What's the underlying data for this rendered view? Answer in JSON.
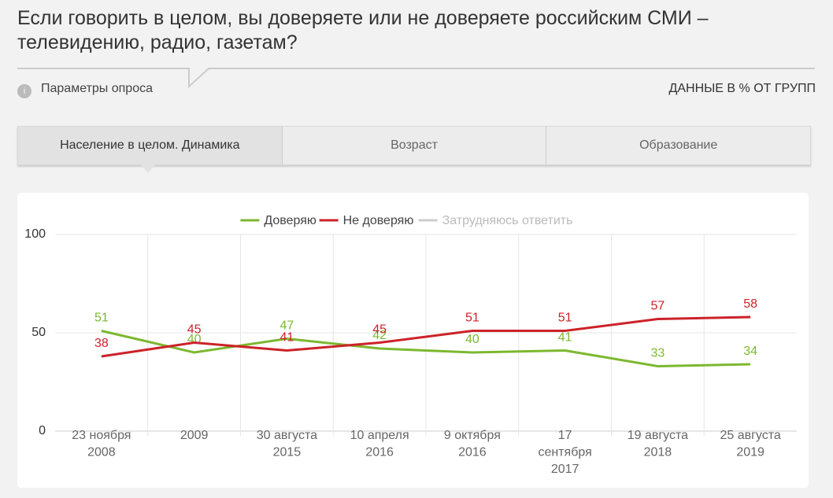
{
  "header": {
    "title_line1": "Если говорить в целом, вы доверяете или не доверяете российским СМИ –",
    "title_line2": "телевидению, радио, газетам?",
    "params": "Параметры опроса",
    "note": "ДАННЫЕ В % ОТ ГРУПП"
  },
  "tabs": [
    "Население в целом. Динамика",
    "Возраст",
    "Образование"
  ],
  "chart_data": {
    "type": "line",
    "categories": [
      "23 ноября 2008",
      "2009",
      "30 августа 2015",
      "10 апреля 2016",
      "9 октября 2016",
      "17 сентября 2017",
      "19 августа 2018",
      "25 августа 2019"
    ],
    "series": [
      {
        "name": "Доверяю",
        "color": "#7cb82f",
        "values": [
          51,
          40,
          47,
          42,
          40,
          41,
          33,
          34
        ]
      },
      {
        "name": "Не доверяю",
        "color": "#cc2229",
        "values": [
          38,
          45,
          41,
          45,
          51,
          51,
          57,
          58
        ]
      },
      {
        "name": "Затрудняюсь ответить",
        "color": "#cccccc",
        "visible": false,
        "values": [
          null,
          null,
          null,
          null,
          null,
          null,
          null,
          null
        ]
      }
    ],
    "ylim": [
      0,
      100
    ],
    "yticks": [
      0,
      50,
      100
    ],
    "grid": true
  }
}
